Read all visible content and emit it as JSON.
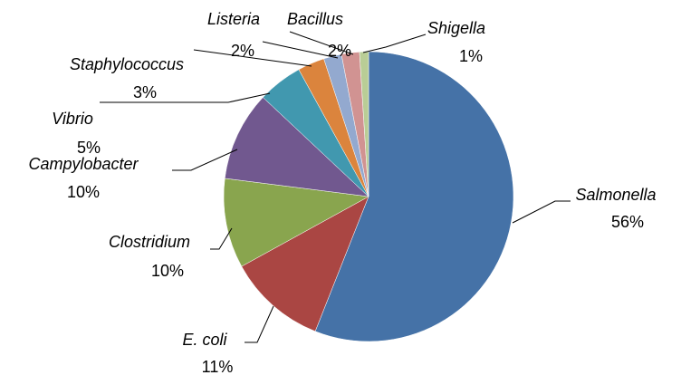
{
  "chart_data": {
    "type": "pie",
    "categories": [
      "Salmonella",
      "E. coli",
      "Clostridium",
      "Campylobacter",
      "Vibrio",
      "Staphylococcus",
      "Listeria",
      "Bacillus",
      "Shigella"
    ],
    "values": [
      56,
      11,
      10,
      10,
      5,
      3,
      2,
      2,
      1
    ],
    "value_labels": [
      "56%",
      "11%",
      "10%",
      "10%",
      "5%",
      "3%",
      "2%",
      "2%",
      "1%"
    ],
    "colors": [
      "#4572a7",
      "#aa4643",
      "#89a54e",
      "#71588f",
      "#4198af",
      "#db843d",
      "#93a9cf",
      "#d19392",
      "#b9cd96"
    ]
  }
}
